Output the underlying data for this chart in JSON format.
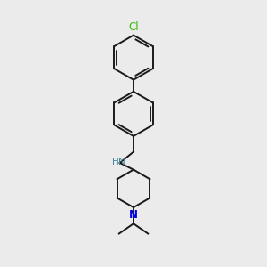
{
  "bg_color": "#ebebeb",
  "line_color": "#1a1a1a",
  "N_color": "#0000ee",
  "Cl_color": "#33bb00",
  "NH_color": "#448899",
  "fig_size": [
    3.0,
    3.0
  ],
  "dpi": 100,
  "xlim": [
    0,
    10
  ],
  "ylim": [
    0,
    10
  ]
}
